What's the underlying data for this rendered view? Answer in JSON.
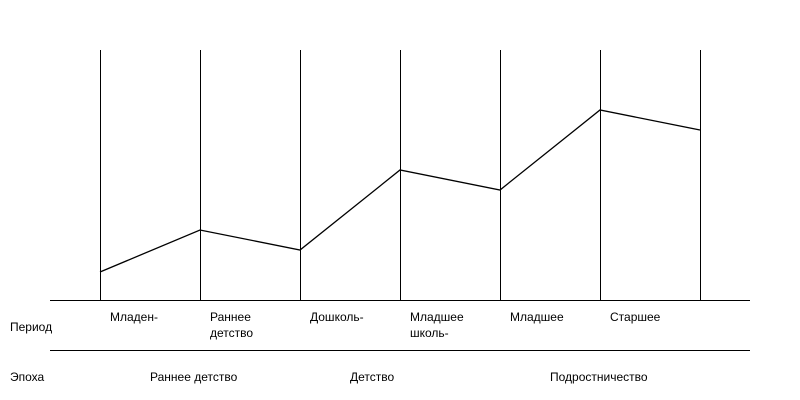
{
  "row_labels": {
    "period": "Период",
    "epoch": "Эпоха"
  },
  "periods": [
    {
      "lines": [
        "Младен-"
      ]
    },
    {
      "lines": [
        "Раннее",
        "детство"
      ]
    },
    {
      "lines": [
        "Дошколь-"
      ]
    },
    {
      "lines": [
        "Младшее",
        "школь-"
      ]
    },
    {
      "lines": [
        "Младшее"
      ]
    },
    {
      "lines": [
        "Старшее"
      ]
    }
  ],
  "epochs": [
    {
      "label": "Раннее детство"
    },
    {
      "label": "Детство"
    },
    {
      "label": "Подростничество"
    }
  ],
  "profile_levels": [
    0.09,
    0.3,
    0.2,
    0.6,
    0.5,
    0.9,
    0.8
  ],
  "colors": {
    "line": "#000000",
    "text": "#000000",
    "background": "#ffffff"
  }
}
